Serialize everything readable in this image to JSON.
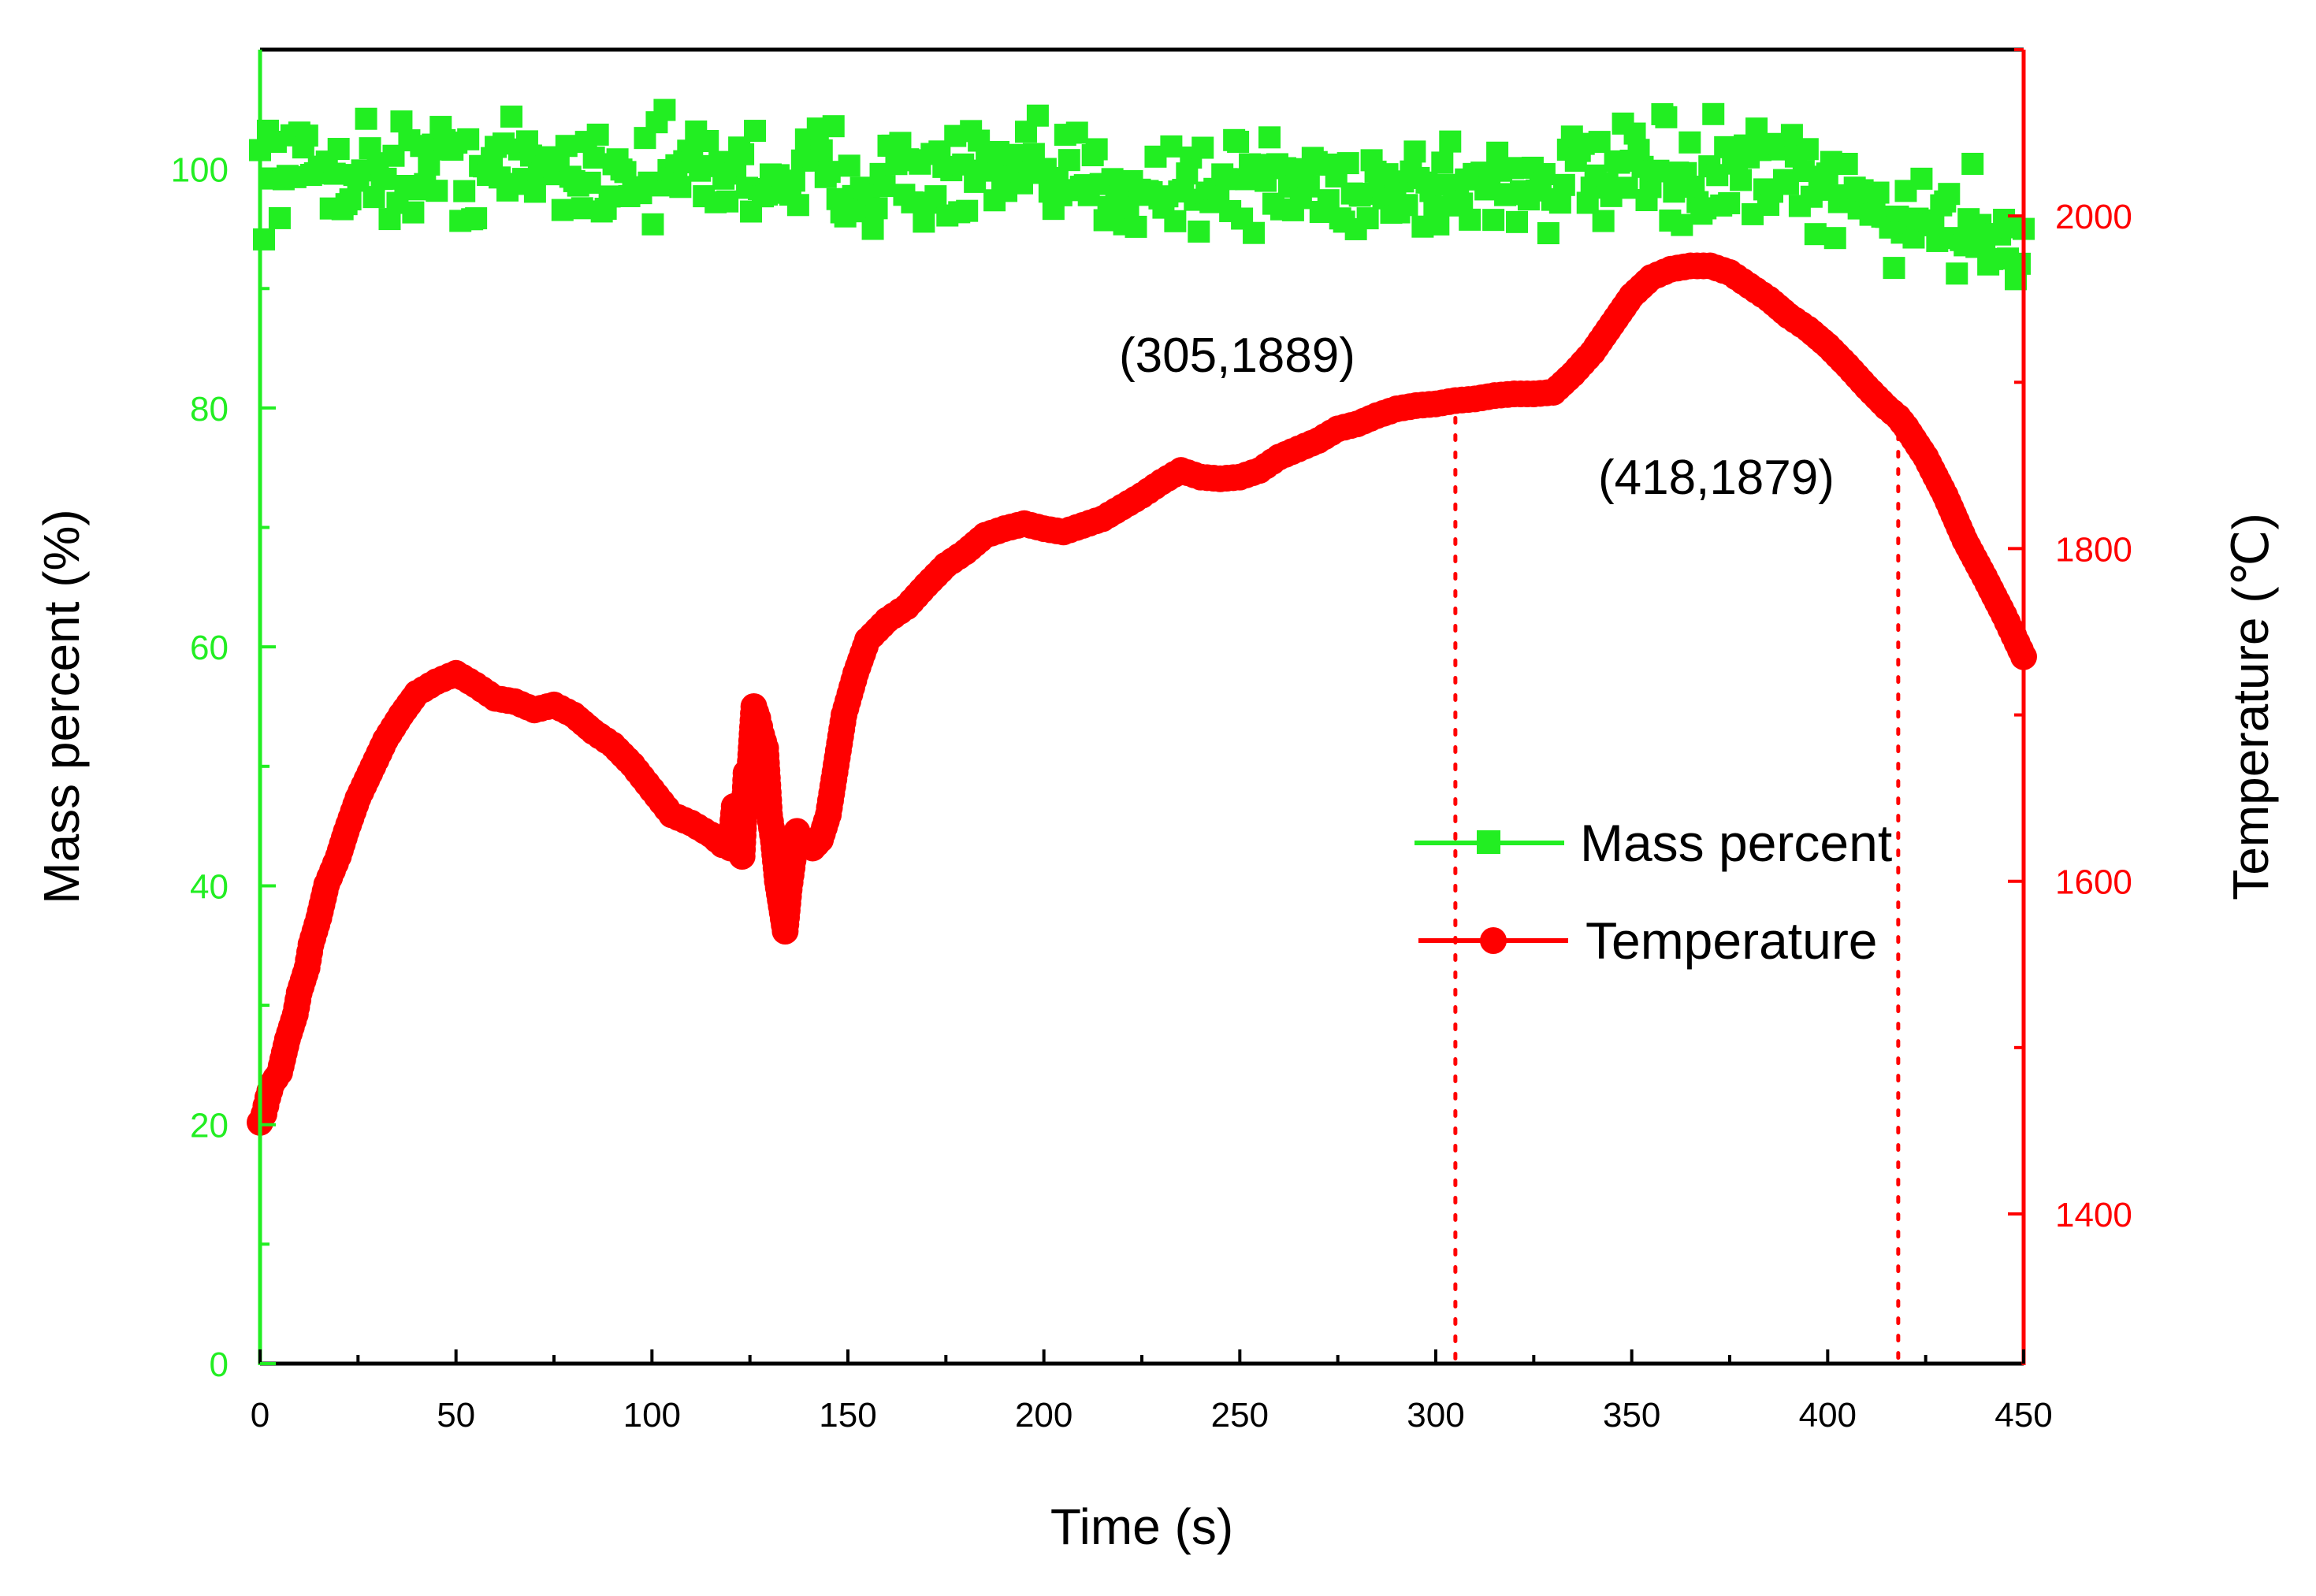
{
  "colors": {
    "mass": "#22ee22",
    "temp": "#ff0000",
    "axis": "#000000"
  },
  "chart_data": {
    "type": "scatter",
    "xlabel": "Time (s)",
    "ylabel_left": "Mass percent (%)",
    "ylabel_right": "Temperature (℃)",
    "xlim": [
      0,
      450
    ],
    "ylim_left": [
      0,
      110
    ],
    "ylim_right": [
      1310,
      2100
    ],
    "x_ticks": [
      0,
      50,
      100,
      150,
      200,
      250,
      300,
      350,
      400,
      450
    ],
    "y_left_ticks": [
      0,
      20,
      40,
      60,
      80,
      100
    ],
    "y_right_ticks": [
      1400,
      1600,
      1800,
      2000
    ],
    "legend": {
      "position": "center-right",
      "entries": [
        "Mass percent",
        "Temperature"
      ]
    },
    "annotations": [
      {
        "text": "(305,1889)",
        "x": 305,
        "y": 1889
      },
      {
        "text": "(418,1879)",
        "x": 418,
        "y": 1879
      }
    ],
    "series": [
      {
        "name": "Mass percent",
        "axis": "left",
        "marker": "square",
        "mean_path": {
          "x": [
            0,
            100,
            200,
            300,
            340,
            380,
            420,
            450
          ],
          "y": [
            100,
            100,
            99,
            98.5,
            99,
            99.5,
            96,
            94.5
          ]
        },
        "noise_amplitude": 3.5,
        "n_points": 450
      },
      {
        "name": "Temperature",
        "axis": "right",
        "marker": "circle",
        "points": [
          [
            0,
            1455
          ],
          [
            1,
            1460
          ],
          [
            2,
            1470
          ],
          [
            3,
            1478
          ],
          [
            5,
            1485
          ],
          [
            7,
            1505
          ],
          [
            9,
            1520
          ],
          [
            10,
            1533
          ],
          [
            12,
            1548
          ],
          [
            13,
            1562
          ],
          [
            15,
            1578
          ],
          [
            17,
            1598
          ],
          [
            20,
            1615
          ],
          [
            22,
            1630
          ],
          [
            25,
            1650
          ],
          [
            28,
            1665
          ],
          [
            32,
            1685
          ],
          [
            36,
            1700
          ],
          [
            40,
            1713
          ],
          [
            45,
            1720
          ],
          [
            50,
            1725
          ],
          [
            55,
            1718
          ],
          [
            60,
            1710
          ],
          [
            65,
            1708
          ],
          [
            70,
            1703
          ],
          [
            75,
            1706
          ],
          [
            80,
            1700
          ],
          [
            85,
            1690
          ],
          [
            90,
            1682
          ],
          [
            95,
            1670
          ],
          [
            100,
            1655
          ],
          [
            105,
            1640
          ],
          [
            110,
            1635
          ],
          [
            115,
            1628
          ],
          [
            118,
            1622
          ],
          [
            120,
            1620
          ],
          [
            121,
            1645
          ],
          [
            123,
            1615
          ],
          [
            124,
            1665
          ],
          [
            125,
            1668
          ],
          [
            126,
            1705
          ],
          [
            127,
            1698
          ],
          [
            128,
            1688
          ],
          [
            129,
            1680
          ],
          [
            130,
            1640
          ],
          [
            131,
            1624
          ],
          [
            132,
            1600
          ],
          [
            133,
            1585
          ],
          [
            134,
            1570
          ],
          [
            135,
            1595
          ],
          [
            137,
            1630
          ],
          [
            139,
            1622
          ],
          [
            141,
            1620
          ],
          [
            143,
            1625
          ],
          [
            145,
            1640
          ],
          [
            147,
            1670
          ],
          [
            149,
            1700
          ],
          [
            152,
            1725
          ],
          [
            155,
            1745
          ],
          [
            160,
            1757
          ],
          [
            165,
            1765
          ],
          [
            170,
            1778
          ],
          [
            175,
            1790
          ],
          [
            180,
            1798
          ],
          [
            185,
            1808
          ],
          [
            190,
            1812
          ],
          [
            195,
            1815
          ],
          [
            200,
            1812
          ],
          [
            205,
            1810
          ],
          [
            210,
            1814
          ],
          [
            215,
            1818
          ],
          [
            220,
            1825
          ],
          [
            225,
            1832
          ],
          [
            230,
            1840
          ],
          [
            235,
            1847
          ],
          [
            240,
            1843
          ],
          [
            245,
            1842
          ],
          [
            250,
            1843
          ],
          [
            255,
            1847
          ],
          [
            260,
            1855
          ],
          [
            265,
            1860
          ],
          [
            270,
            1865
          ],
          [
            275,
            1872
          ],
          [
            280,
            1875
          ],
          [
            285,
            1880
          ],
          [
            290,
            1884
          ],
          [
            295,
            1886
          ],
          [
            300,
            1887
          ],
          [
            305,
            1889
          ],
          [
            310,
            1890
          ],
          [
            315,
            1892
          ],
          [
            320,
            1893
          ],
          [
            325,
            1893
          ],
          [
            330,
            1894
          ],
          [
            335,
            1905
          ],
          [
            340,
            1918
          ],
          [
            345,
            1935
          ],
          [
            350,
            1952
          ],
          [
            355,
            1963
          ],
          [
            360,
            1968
          ],
          [
            365,
            1970
          ],
          [
            370,
            1970
          ],
          [
            375,
            1966
          ],
          [
            380,
            1958
          ],
          [
            385,
            1950
          ],
          [
            390,
            1940
          ],
          [
            395,
            1932
          ],
          [
            400,
            1922
          ],
          [
            405,
            1910
          ],
          [
            410,
            1897
          ],
          [
            415,
            1885
          ],
          [
            418,
            1879
          ],
          [
            420,
            1873
          ],
          [
            425,
            1855
          ],
          [
            430,
            1832
          ],
          [
            435,
            1805
          ],
          [
            440,
            1783
          ],
          [
            445,
            1760
          ],
          [
            450,
            1735
          ]
        ]
      }
    ]
  }
}
